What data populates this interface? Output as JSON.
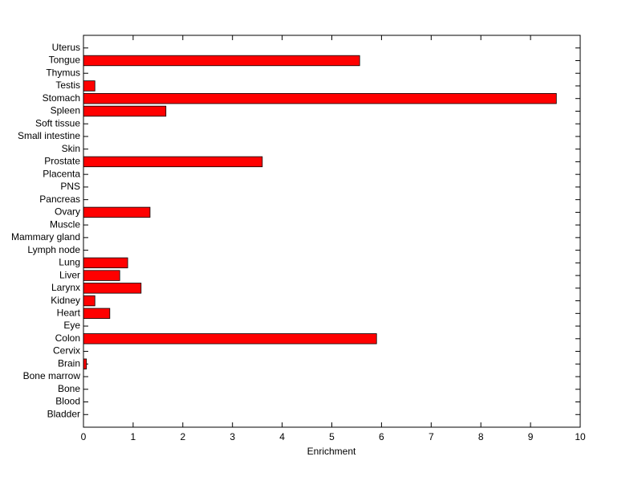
{
  "chart_data": {
    "type": "barh",
    "xlabel": "Enrichment",
    "categories": [
      "Uterus",
      "Tongue",
      "Thymus",
      "Testis",
      "Stomach",
      "Spleen",
      "Soft tissue",
      "Small intestine",
      "Skin",
      "Prostate",
      "Placenta",
      "PNS",
      "Pancreas",
      "Ovary",
      "Muscle",
      "Mammary gland",
      "Lymph node",
      "Lung",
      "Liver",
      "Larynx",
      "Kidney",
      "Heart",
      "Eye",
      "Colon",
      "Cervix",
      "Brain",
      "Bone marrow",
      "Bone",
      "Blood",
      "Bladder"
    ],
    "values": [
      0,
      5.56,
      0,
      0.23,
      9.52,
      1.66,
      0,
      0,
      0,
      3.6,
      0,
      0,
      0,
      1.34,
      0,
      0,
      0,
      0.89,
      0.73,
      1.16,
      0.23,
      0.53,
      0,
      5.9,
      0,
      0.06,
      0,
      0,
      0,
      0
    ],
    "color": "#ff0000",
    "xlim": [
      0,
      10
    ],
    "xticks": [
      0,
      1,
      2,
      3,
      4,
      5,
      6,
      7,
      8,
      9,
      10
    ]
  }
}
